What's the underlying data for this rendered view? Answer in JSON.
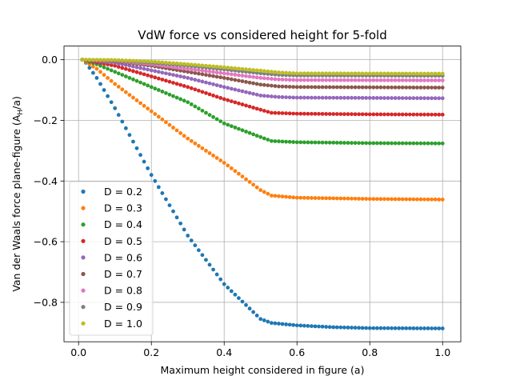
{
  "chart_data": {
    "type": "scatter",
    "title": "VdW force vs considered height for 5-fold",
    "xlabel": "Maximum height considered in figure (a)",
    "ylabel_main": "Van der Waals force plane-figure (A",
    "ylabel_sub": "H",
    "ylabel_tail": "/a)",
    "xlim": [
      -0.04,
      1.05
    ],
    "ylim": [
      -0.93,
      0.045
    ],
    "xticks": [
      0.0,
      0.2,
      0.4,
      0.6,
      0.8,
      1.0
    ],
    "xtick_labels": [
      "0.0",
      "0.2",
      "0.4",
      "0.6",
      "0.8",
      "1.0"
    ],
    "yticks": [
      0.0,
      -0.2,
      -0.4,
      -0.6,
      -0.8
    ],
    "ytick_labels": [
      "0.0",
      "−0.2",
      "−0.4",
      "−0.6",
      "−0.8"
    ],
    "grid": true,
    "legend_placement": "lower-left",
    "x_range": [
      0.01,
      1.0
    ],
    "x_count": 100,
    "series": [
      {
        "name": "D = 0.2",
        "color": "#1f77b4",
        "points": [
          [
            0.01,
            0.0
          ],
          [
            0.02,
            -0.01
          ],
          [
            0.05,
            -0.06
          ],
          [
            0.1,
            -0.16
          ],
          [
            0.2,
            -0.38
          ],
          [
            0.3,
            -0.58
          ],
          [
            0.4,
            -0.74
          ],
          [
            0.5,
            -0.855
          ],
          [
            0.53,
            -0.868
          ],
          [
            0.6,
            -0.876
          ],
          [
            0.7,
            -0.882
          ],
          [
            0.8,
            -0.885
          ],
          [
            1.0,
            -0.886
          ]
        ]
      },
      {
        "name": "D = 0.3",
        "color": "#ff7f0e",
        "points": [
          [
            0.01,
            0.0
          ],
          [
            0.05,
            -0.03
          ],
          [
            0.1,
            -0.08
          ],
          [
            0.2,
            -0.17
          ],
          [
            0.3,
            -0.26
          ],
          [
            0.4,
            -0.34
          ],
          [
            0.5,
            -0.43
          ],
          [
            0.53,
            -0.448
          ],
          [
            0.6,
            -0.455
          ],
          [
            0.8,
            -0.459
          ],
          [
            1.0,
            -0.461
          ]
        ]
      },
      {
        "name": "D = 0.4",
        "color": "#2ca02c",
        "points": [
          [
            0.01,
            0.0
          ],
          [
            0.05,
            -0.015
          ],
          [
            0.1,
            -0.04
          ],
          [
            0.2,
            -0.09
          ],
          [
            0.3,
            -0.14
          ],
          [
            0.4,
            -0.21
          ],
          [
            0.5,
            -0.255
          ],
          [
            0.53,
            -0.268
          ],
          [
            0.6,
            -0.272
          ],
          [
            0.8,
            -0.275
          ],
          [
            1.0,
            -0.276
          ]
        ]
      },
      {
        "name": "D = 0.5",
        "color": "#d62728",
        "points": [
          [
            0.01,
            0.0
          ],
          [
            0.1,
            -0.02
          ],
          [
            0.2,
            -0.055
          ],
          [
            0.3,
            -0.09
          ],
          [
            0.4,
            -0.13
          ],
          [
            0.5,
            -0.165
          ],
          [
            0.53,
            -0.175
          ],
          [
            0.6,
            -0.178
          ],
          [
            0.8,
            -0.18
          ],
          [
            1.0,
            -0.181
          ]
        ]
      },
      {
        "name": "D = 0.6",
        "color": "#9467bd",
        "points": [
          [
            0.01,
            0.0
          ],
          [
            0.1,
            -0.01
          ],
          [
            0.2,
            -0.035
          ],
          [
            0.3,
            -0.06
          ],
          [
            0.4,
            -0.09
          ],
          [
            0.5,
            -0.118
          ],
          [
            0.55,
            -0.123
          ],
          [
            0.6,
            -0.125
          ],
          [
            1.0,
            -0.127
          ]
        ]
      },
      {
        "name": "D = 0.7",
        "color": "#8c564b",
        "points": [
          [
            0.01,
            0.0
          ],
          [
            0.1,
            -0.005
          ],
          [
            0.2,
            -0.02
          ],
          [
            0.3,
            -0.04
          ],
          [
            0.4,
            -0.06
          ],
          [
            0.5,
            -0.082
          ],
          [
            0.55,
            -0.088
          ],
          [
            0.6,
            -0.09
          ],
          [
            1.0,
            -0.092
          ]
        ]
      },
      {
        "name": "D = 0.8",
        "color": "#e377c2",
        "points": [
          [
            0.01,
            0.0
          ],
          [
            0.1,
            -0.003
          ],
          [
            0.2,
            -0.015
          ],
          [
            0.3,
            -0.03
          ],
          [
            0.4,
            -0.045
          ],
          [
            0.5,
            -0.06
          ],
          [
            0.55,
            -0.065
          ],
          [
            0.6,
            -0.067
          ],
          [
            1.0,
            -0.068
          ]
        ]
      },
      {
        "name": "D = 0.9",
        "color": "#7f7f7f",
        "points": [
          [
            0.01,
            0.0
          ],
          [
            0.1,
            -0.002
          ],
          [
            0.2,
            -0.01
          ],
          [
            0.3,
            -0.02
          ],
          [
            0.4,
            -0.032
          ],
          [
            0.5,
            -0.045
          ],
          [
            0.55,
            -0.05
          ],
          [
            0.6,
            -0.052
          ],
          [
            1.0,
            -0.053
          ]
        ]
      },
      {
        "name": "D = 1.0",
        "color": "#bcbd22",
        "points": [
          [
            0.01,
            0.0
          ],
          [
            0.1,
            -0.001
          ],
          [
            0.2,
            -0.006
          ],
          [
            0.3,
            -0.015
          ],
          [
            0.4,
            -0.025
          ],
          [
            0.5,
            -0.036
          ],
          [
            0.55,
            -0.042
          ],
          [
            0.6,
            -0.045
          ],
          [
            1.0,
            -0.046
          ]
        ]
      }
    ]
  }
}
